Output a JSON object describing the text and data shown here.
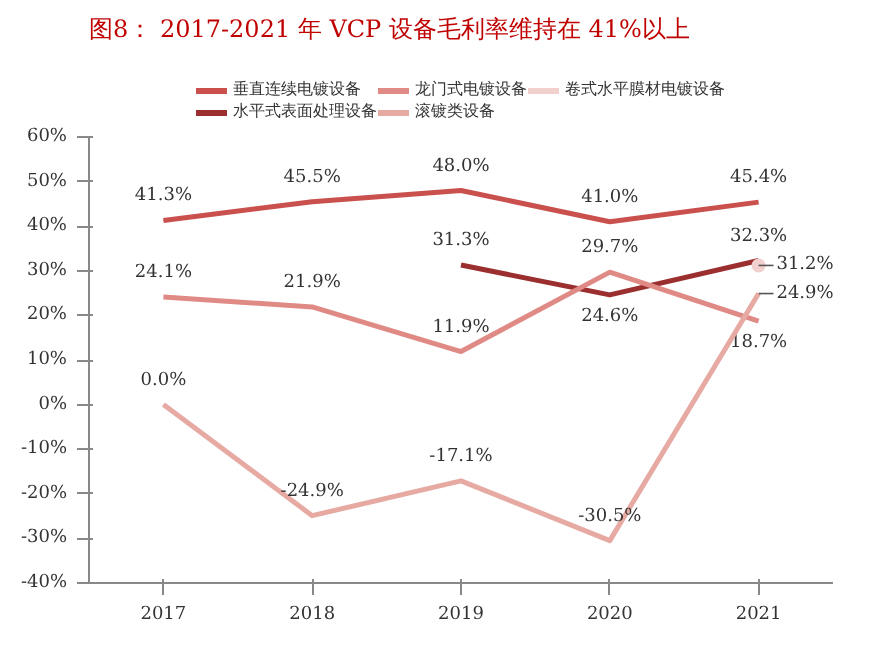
{
  "chart_data": {
    "type": "line",
    "title": "图8： 2017-2021 年 VCP 设备毛利率维持在 41%以上",
    "categories": [
      "2017",
      "2018",
      "2019",
      "2020",
      "2021"
    ],
    "series": [
      {
        "name": "垂直连续电镀设备",
        "color": "#c9504d",
        "values": [
          41.3,
          45.5,
          48.0,
          41.0,
          45.4
        ],
        "value_labels": [
          "41.3%",
          "45.5%",
          "48.0%",
          "41.0%",
          "45.4%"
        ]
      },
      {
        "name": "水平式表面处理设备",
        "color": "#9b2f2f",
        "values": [
          null,
          null,
          31.3,
          24.6,
          32.3
        ],
        "value_labels": [
          null,
          null,
          "31.3%",
          "24.6%",
          "32.3%"
        ]
      },
      {
        "name": "龙门式电镀设备",
        "color": "#e08a86",
        "values": [
          24.1,
          21.9,
          11.9,
          29.7,
          18.7
        ],
        "value_labels": [
          "24.1%",
          "21.9%",
          "11.9%",
          "29.7%",
          "18.7%"
        ]
      },
      {
        "name": "滚镀类设备",
        "color": "#e6aaa3",
        "values": [
          0.0,
          -24.9,
          -17.1,
          -30.5,
          24.9
        ],
        "value_labels": [
          "0.0%",
          "-24.9%",
          "-17.1%",
          "-30.5%",
          "24.9%"
        ]
      },
      {
        "name": "卷式水平膜材电镀设备",
        "color": "#f2d0cd",
        "marker": "circle",
        "values": [
          null,
          null,
          null,
          null,
          31.2
        ],
        "value_labels": [
          null,
          null,
          null,
          null,
          "31.2%"
        ]
      }
    ],
    "ylim": [
      -40,
      60
    ],
    "yticks": [
      {
        "value": -40,
        "label": "-40%"
      },
      {
        "value": -30,
        "label": "-30%"
      },
      {
        "value": -20,
        "label": "-20%"
      },
      {
        "value": -10,
        "label": "-10%"
      },
      {
        "value": 0,
        "label": "0%"
      },
      {
        "value": 10,
        "label": "10%"
      },
      {
        "value": 20,
        "label": "20%"
      },
      {
        "value": 30,
        "label": "30%"
      },
      {
        "value": 40,
        "label": "40%"
      },
      {
        "value": 50,
        "label": "50%"
      },
      {
        "value": 60,
        "label": "60%"
      }
    ],
    "grid": false,
    "legend": "top",
    "marker": "none",
    "line_style": "solid"
  }
}
